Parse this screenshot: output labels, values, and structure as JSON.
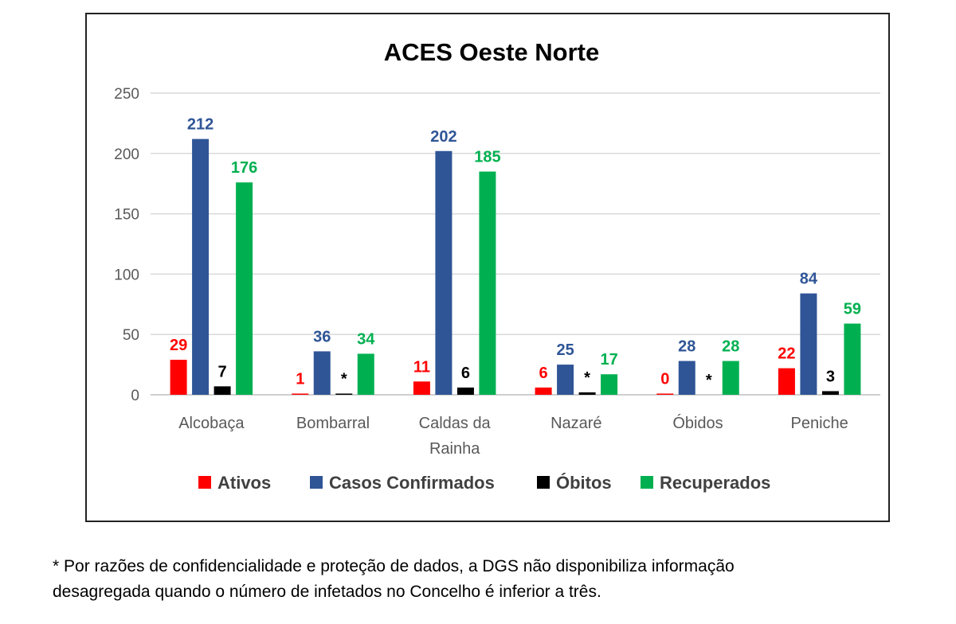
{
  "chart_data": {
    "type": "bar",
    "title": "ACES Oeste Norte",
    "categories": [
      [
        "Alcobaça"
      ],
      [
        "Bombarral"
      ],
      [
        "Caldas da",
        "Rainha"
      ],
      [
        "Nazaré"
      ],
      [
        "Óbidos"
      ],
      [
        "Peniche"
      ]
    ],
    "series": [
      {
        "name": "Ativos",
        "color": "#ff0000",
        "values": [
          29,
          1,
          11,
          6,
          0,
          22
        ],
        "labels": [
          "29",
          "1",
          "11",
          "6",
          "0",
          "22"
        ]
      },
      {
        "name": "Casos Confirmados",
        "color": "#2f5597",
        "values": [
          212,
          36,
          202,
          25,
          28,
          84
        ],
        "labels": [
          "212",
          "36",
          "202",
          "25",
          "28",
          "84"
        ]
      },
      {
        "name": "Óbitos",
        "color": "#000000",
        "values": [
          7,
          1,
          6,
          2,
          null,
          3
        ],
        "labels": [
          "7",
          "*",
          "6",
          "*",
          "*",
          "3"
        ]
      },
      {
        "name": "Recuperados",
        "color": "#00b050",
        "values": [
          176,
          34,
          185,
          17,
          28,
          59
        ],
        "labels": [
          "176",
          "34",
          "185",
          "17",
          "28",
          "59"
        ]
      }
    ],
    "yticks": [
      "0",
      "50",
      "100",
      "150",
      "200",
      "250"
    ],
    "ylim": [
      0,
      250
    ],
    "grid": true,
    "legend": "bottom"
  },
  "footnote": [
    "* Por razões de confidencialidade e proteção de dados, a DGS não disponibiliza informação",
    "desagregada quando o número de infetados no Concelho é inferior a três."
  ]
}
